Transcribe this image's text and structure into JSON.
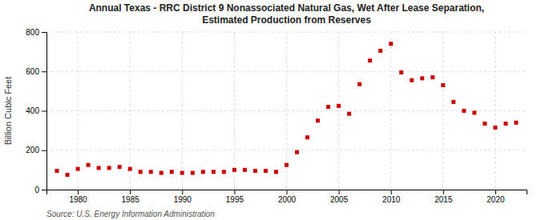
{
  "chart_data": {
    "type": "scatter",
    "title": "Annual Texas - RRC District 9 Nonassociated Natural Gas, Wet After Lease Separation,\nEstimated Production from Reserves",
    "ylabel": "Billion Cubic Feet",
    "source": "Source: U.S. Energy Information Administration",
    "x": [
      1978,
      1979,
      1980,
      1981,
      1982,
      1983,
      1984,
      1985,
      1986,
      1987,
      1988,
      1989,
      1990,
      1991,
      1992,
      1993,
      1994,
      1995,
      1996,
      1997,
      1998,
      1999,
      2000,
      2001,
      2002,
      2003,
      2004,
      2005,
      2006,
      2007,
      2008,
      2009,
      2010,
      2011,
      2012,
      2013,
      2014,
      2015,
      2016,
      2017,
      2018,
      2019,
      2020,
      2021,
      2022
    ],
    "values": [
      95,
      75,
      105,
      125,
      110,
      110,
      115,
      105,
      90,
      90,
      85,
      90,
      85,
      85,
      90,
      90,
      90,
      100,
      100,
      95,
      95,
      90,
      125,
      190,
      265,
      350,
      420,
      425,
      385,
      535,
      655,
      705,
      740,
      595,
      555,
      565,
      570,
      530,
      445,
      400,
      390,
      335,
      315,
      335,
      340
    ],
    "color": "#cc0000",
    "marker": "square",
    "xlim": [
      1977,
      2023
    ],
    "ylim": [
      0,
      800
    ],
    "xticks": [
      1980,
      1985,
      1990,
      1995,
      2000,
      2005,
      2010,
      2015,
      2020
    ],
    "yticks": [
      0,
      200,
      400,
      600,
      800
    ],
    "grid": true
  }
}
